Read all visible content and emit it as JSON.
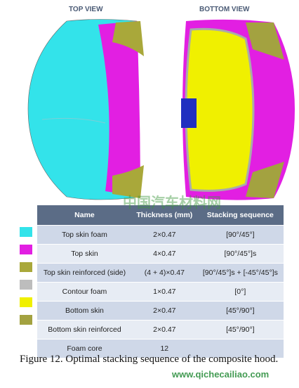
{
  "figure": {
    "views": [
      "TOP VIEW",
      "BOTTOM VIEW"
    ],
    "table": {
      "header": [
        "Name",
        "Thickness (mm)",
        "Stacking sequence"
      ],
      "rows": [
        {
          "color": "#33e3ea",
          "cells": [
            "Top skin foam",
            "2×0.47",
            "[90°/45°]"
          ]
        },
        {
          "color": "#e21fe2",
          "cells": [
            "Top skin",
            "4×0.47",
            "[90°/45°]s"
          ]
        },
        {
          "color": "#a9a83a",
          "cells": [
            "Top skin reinforced (side)",
            "(4 + 4)×0.47",
            "[90°/45°]s + [-45°/45°]s"
          ]
        },
        {
          "color": "#bdbdbd",
          "cells": [
            "Contour foam",
            "1×0.47",
            "[0°]"
          ]
        },
        {
          "color": "#f0f000",
          "cells": [
            "Bottom skin",
            "2×0.47",
            "[45°/90°]"
          ]
        },
        {
          "color": "#a3a240",
          "cells": [
            "Bottom skin reinforced",
            "2×0.47",
            "[45°/90°]"
          ]
        },
        {
          "color": null,
          "cells": [
            "Foam core",
            "12",
            ""
          ]
        }
      ]
    },
    "caption": "Figure 12. Optimal stacking sequence of the composite hood.",
    "watermark": [
      "中国汽车材料网",
      "www.qichecailiao.com"
    ]
  }
}
